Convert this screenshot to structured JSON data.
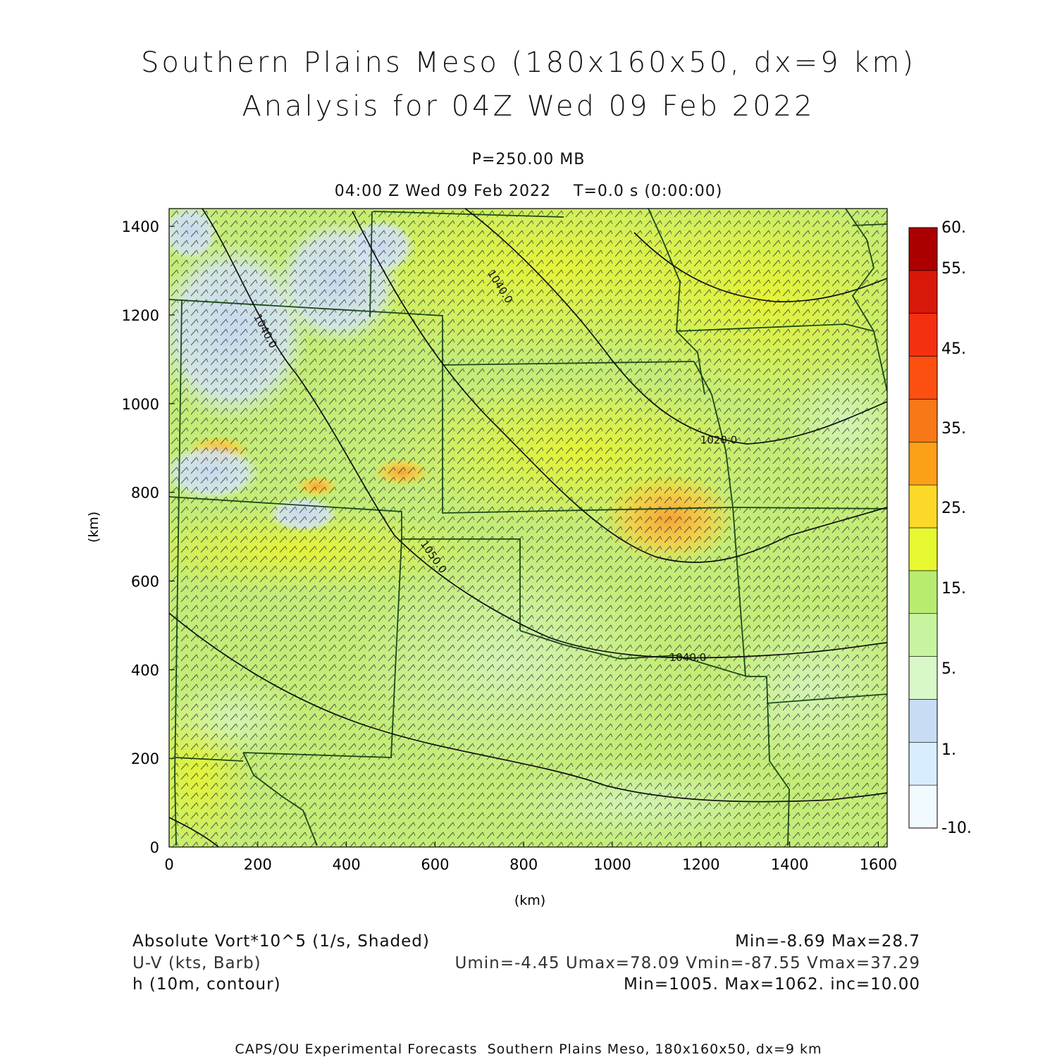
{
  "header": {
    "title_line1": "Southern Plains Meso (180x160x50, dx=9 km)",
    "title_line2": "Analysis for 04Z Wed 09 Feb 2022",
    "level": "P=250.00 MB",
    "valid_time": "04:00 Z Wed 09 Feb 2022    T=0.0 s (0:00:00)"
  },
  "legend": {
    "field1_name": "Absolute Vort*10^5 (1/s, Shaded)",
    "field1_stats": "Min=-8.69 Max=28.7",
    "field2_name": "U-V (kts, Barb)",
    "field2_stats": "Umin=-4.45 Umax=78.09 Vmin=-87.55 Vmax=37.29",
    "field3_name": "h (10m, contour)",
    "field3_stats": "Min=1005. Max=1062. inc=10.00"
  },
  "footer": "CAPS/OU Experimental Forecasts  Southern Plains Meso, 180x160x50, dx=9 km",
  "map": {
    "x_axis_label": "(km)",
    "y_axis_label": "(km)",
    "x_range": [
      0,
      1620
    ],
    "y_range": [
      0,
      1440
    ],
    "x_ticks": [
      0,
      200,
      400,
      600,
      800,
      1000,
      1200,
      1400,
      1600
    ],
    "y_ticks": [
      0,
      200,
      400,
      600,
      800,
      1000,
      1200,
      1400
    ],
    "contour_labels": [
      {
        "text": "1040.0",
        "x": 740,
        "y": 1260,
        "angle": 58
      },
      {
        "text": "1040.0",
        "x": 210,
        "y": 1160,
        "angle": 62
      },
      {
        "text": "1020.0",
        "x": 1240,
        "y": 910,
        "angle": 0
      },
      {
        "text": "1050.0",
        "x": 590,
        "y": 650,
        "angle": 55
      },
      {
        "text": "1040.0",
        "x": 1170,
        "y": 420,
        "angle": 0
      }
    ]
  },
  "colorbar": {
    "labels": [
      "60.",
      "55.",
      "45.",
      "35.",
      "25.",
      "15.",
      "5.",
      "1.",
      "-10."
    ],
    "colors": [
      "#f0faff",
      "#d8eeff",
      "#c8dcf4",
      "#d8f8c8",
      "#c8f4a0",
      "#b8ec70",
      "#e8f830",
      "#fcd828",
      "#fca018",
      "#f87818",
      "#fc5010",
      "#f43010",
      "#d81808",
      "#ac0000"
    ]
  }
}
